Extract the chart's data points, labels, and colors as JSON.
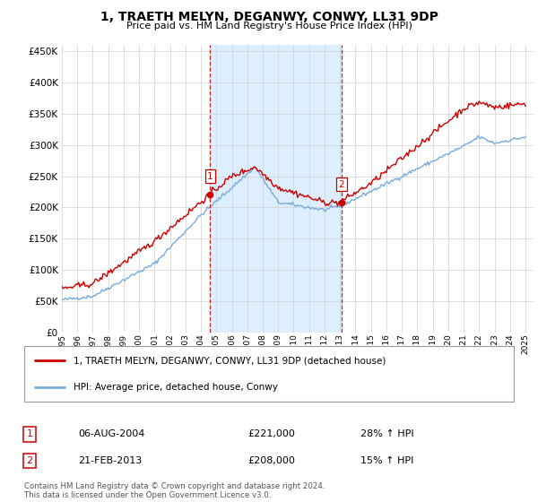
{
  "title": "1, TRAETH MELYN, DEGANWY, CONWY, LL31 9DP",
  "subtitle": "Price paid vs. HM Land Registry's House Price Index (HPI)",
  "ylim": [
    0,
    460000
  ],
  "yticks": [
    0,
    50000,
    100000,
    150000,
    200000,
    250000,
    300000,
    350000,
    400000,
    450000
  ],
  "x_start_year": 1995,
  "x_end_year": 2025,
  "sale1_year": 2004.6,
  "sale1_price": 221000,
  "sale1_label": "1",
  "sale1_date": "06-AUG-2004",
  "sale1_hpi": "28% ↑ HPI",
  "sale2_year": 2013.1,
  "sale2_price": 208000,
  "sale2_label": "2",
  "sale2_date": "21-FEB-2013",
  "sale2_hpi": "15% ↑ HPI",
  "red_line_color": "#cc0000",
  "blue_line_color": "#7aabdb",
  "shade_color": "#ddeeff",
  "vline_color": "#cc0000",
  "legend_label_red": "1, TRAETH MELYN, DEGANWY, CONWY, LL31 9DP (detached house)",
  "legend_label_blue": "HPI: Average price, detached house, Conwy",
  "footer1": "Contains HM Land Registry data © Crown copyright and database right 2024.",
  "footer2": "This data is licensed under the Open Government Licence v3.0."
}
